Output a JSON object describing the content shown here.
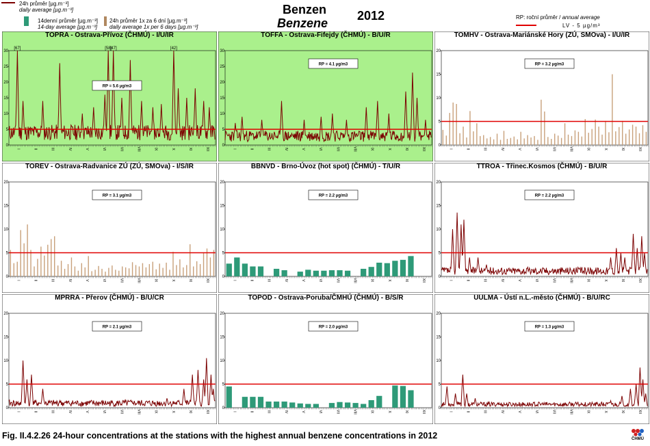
{
  "header": {
    "title": "Benzen",
    "subtitle": "Benzene",
    "year": "2012",
    "legend_24h": "24h průměr [µg.m⁻³]",
    "legend_24h_en": "daily average [µg.m⁻³]",
    "legend_14d": "14denní průměr [µg.m⁻³]",
    "legend_14d_en": "14-day average [µg.m⁻³]",
    "legend_6d": "24h průměr 1x za 6 dní [µg.m⁻³]",
    "legend_6d_en": "daily average 1x per 6 days [µg.m⁻³]",
    "legend_rp": "RP: roční průměr / ",
    "legend_rp_en": "annual average",
    "legend_lv": "LV - 5 µg/m³",
    "colors": {
      "daily": "#7b0000",
      "fortnight": "#2e9a78",
      "sixday": "#c8a07a",
      "limit": "#e00000",
      "green_bg": "#aaf08c"
    }
  },
  "caption": "Fig. II.4.2.26  24-hour concentrations at the stations with the highest annual benzene concentrations in 2012",
  "logo_text": "ČHMÚ",
  "months": [
    "I",
    "II",
    "III",
    "IV",
    "V",
    "VI",
    "VII",
    "VIII",
    "IX",
    "X",
    "XI",
    "XII"
  ],
  "chart_data": [
    {
      "type": "line",
      "title": "TOPRA - Ostrava-Přívoz (ČHMÚ) - I/U/IR",
      "rp_label": "RP = 5.6 µg/m3",
      "ylim": [
        0,
        30
      ],
      "yticks": [
        0,
        5,
        10,
        15,
        20,
        25,
        30
      ],
      "highlight": true,
      "limit": 5,
      "annotations": [
        {
          "day": 15,
          "text": "[67]"
        },
        {
          "day": 176,
          "text": "[58]"
        },
        {
          "day": 185,
          "text": "[47]"
        },
        {
          "day": 292,
          "text": "[42]"
        }
      ],
      "peaks": [
        [
          15,
          30
        ],
        [
          25,
          14
        ],
        [
          60,
          14
        ],
        [
          90,
          26
        ],
        [
          130,
          10
        ],
        [
          150,
          12
        ],
        [
          170,
          16
        ],
        [
          176,
          30
        ],
        [
          185,
          30
        ],
        [
          200,
          15
        ],
        [
          215,
          27
        ],
        [
          235,
          14
        ],
        [
          255,
          12
        ],
        [
          270,
          13
        ],
        [
          292,
          30
        ],
        [
          300,
          18
        ],
        [
          315,
          15
        ],
        [
          330,
          18
        ],
        [
          345,
          14
        ],
        [
          355,
          12
        ]
      ],
      "base": 3.5,
      "noise": 2.5,
      "seed": 11
    },
    {
      "type": "line",
      "title": "TOFFA - Ostrava-Fifejdy (ČHMÚ) - B/U/R",
      "rp_label": "RP = 4.1 µg/m3",
      "ylim": [
        0,
        30
      ],
      "yticks": [
        0,
        5,
        10,
        15,
        20,
        25,
        30
      ],
      "highlight": true,
      "limit": 5,
      "annotations": [],
      "peaks": [
        [
          18,
          7
        ],
        [
          30,
          9
        ],
        [
          65,
          8
        ],
        [
          100,
          14
        ],
        [
          140,
          8
        ],
        [
          170,
          9
        ],
        [
          190,
          10
        ],
        [
          215,
          8
        ],
        [
          250,
          12
        ],
        [
          270,
          14
        ],
        [
          290,
          10
        ],
        [
          320,
          17
        ],
        [
          332,
          23
        ],
        [
          340,
          15
        ],
        [
          355,
          8
        ]
      ],
      "base": 2.5,
      "noise": 1.8,
      "seed": 23
    },
    {
      "type": "bar6",
      "title": "TOMHV - Ostrava-Mariánské Hory (ZÚ, SMOva) - I/U/IR",
      "rp_label": "RP = 3.2 µg/m3",
      "ylim": [
        0,
        20
      ],
      "yticks": [
        0,
        5,
        10,
        15,
        20
      ],
      "highlight": false,
      "limit": 5,
      "values": [
        3.2,
        2.0,
        6.8,
        9.0,
        8.7,
        2.5,
        3.9,
        1.6,
        7.2,
        2.9,
        4.6,
        1.9,
        2.1,
        1.4,
        1.7,
        1.2,
        2.4,
        1.1,
        3.0,
        1.3,
        1.5,
        1.8,
        1.2,
        2.8,
        1.4,
        2.1,
        1.6,
        1.9,
        1.1,
        9.6,
        7.1,
        1.7,
        1.3,
        2.4,
        2.0,
        1.5,
        4.6,
        2.2,
        1.9,
        3.1,
        2.8,
        1.8,
        5.5,
        2.6,
        3.4,
        5.4,
        3.9,
        2.2,
        5.1,
        2.7,
        15.0,
        2.9,
        3.8,
        5.1,
        2.4,
        3.3,
        4.3,
        3.9,
        2.5,
        4.2,
        2.8
      ]
    },
    {
      "type": "bar6",
      "title": "TOREV - Ostrava-Radvanice ZÚ (ZÚ, SMOva) - I/S/IR",
      "rp_label": "RP = 3.1 µg/m3",
      "ylim": [
        0,
        20
      ],
      "yticks": [
        0,
        5,
        10,
        15,
        20
      ],
      "highlight": false,
      "limit": 5,
      "values": [
        5.6,
        2.8,
        3.1,
        9.8,
        7.0,
        11.0,
        5.6,
        2.1,
        3.7,
        6.3,
        4.4,
        6.7,
        7.9,
        8.5,
        2.3,
        3.3,
        1.6,
        2.6,
        4.0,
        2.1,
        1.2,
        2.8,
        1.9,
        4.3,
        1.1,
        1.4,
        2.2,
        1.6,
        1.0,
        1.8,
        2.3,
        1.4,
        1.2,
        2.1,
        1.9,
        1.7,
        3.0,
        2.4,
        2.1,
        2.8,
        1.9,
        2.6,
        3.1,
        1.5,
        2.7,
        1.8,
        2.9,
        1.4,
        5.2,
        2.4,
        3.6,
        1.9,
        2.4,
        6.8,
        2.1,
        3.2,
        2.6,
        5.1,
        5.9,
        4.0,
        5.6
      ]
    },
    {
      "type": "bar14",
      "title": "BBNVD - Brno-Úvoz (hot spot) (ČHMÚ) - T/U/R",
      "rp_label": "RP = 2.2 µg/m3",
      "ylim": [
        0,
        20
      ],
      "yticks": [
        0,
        5,
        10,
        15,
        20
      ],
      "highlight": false,
      "limit": 5,
      "values": [
        2.7,
        4.0,
        2.7,
        2.1,
        2.1,
        null,
        1.6,
        1.3,
        null,
        1.0,
        1.4,
        1.2,
        1.2,
        1.3,
        1.3,
        1.2,
        null,
        1.6,
        2.0,
        2.9,
        2.8,
        3.3,
        3.5,
        4.3,
        null,
        null
      ]
    },
    {
      "type": "line",
      "title": "TTROA - Třinec.Kosmos (ČHMÚ) - B/U/R",
      "rp_label": "RP = 2.2 µg/m3",
      "ylim": [
        0,
        20
      ],
      "yticks": [
        0,
        5,
        10,
        15,
        20
      ],
      "highlight": false,
      "limit": 5,
      "annotations": [],
      "peaks": [
        [
          20,
          10
        ],
        [
          28,
          13.5
        ],
        [
          35,
          11
        ],
        [
          40,
          12
        ],
        [
          50,
          4
        ],
        [
          65,
          4
        ],
        [
          80,
          2.5
        ],
        [
          120,
          1.5
        ],
        [
          200,
          1
        ],
        [
          260,
          1.5
        ],
        [
          300,
          4
        ],
        [
          310,
          6
        ],
        [
          318,
          5
        ],
        [
          325,
          4
        ],
        [
          340,
          9
        ],
        [
          347,
          6
        ],
        [
          355,
          8.5
        ],
        [
          360,
          5
        ]
      ],
      "base": 1.0,
      "noise": 0.8,
      "seed": 37
    },
    {
      "type": "line",
      "title": "MPRRA - Přerov (ČHMÚ) - B/U/CR",
      "rp_label": "RP = 2.1 µg/m3",
      "ylim": [
        0,
        20
      ],
      "yticks": [
        0,
        5,
        10,
        15,
        20
      ],
      "highlight": false,
      "limit": 5,
      "annotations": [],
      "peaks": [
        [
          25,
          10
        ],
        [
          32,
          6
        ],
        [
          40,
          7
        ],
        [
          60,
          4
        ],
        [
          90,
          1.5
        ],
        [
          150,
          1
        ],
        [
          220,
          1
        ],
        [
          280,
          2
        ],
        [
          310,
          4
        ],
        [
          325,
          7
        ],
        [
          335,
          8
        ],
        [
          345,
          6
        ],
        [
          350,
          10.5
        ],
        [
          358,
          7
        ],
        [
          362,
          4
        ]
      ],
      "base": 0.8,
      "noise": 0.7,
      "seed": 41
    },
    {
      "type": "bar14",
      "title": "TOPOD - Ostrava-Poruba/ČMHÚ (ČHMÚ) - B/S/R",
      "rp_label": "RP = 2.0 µg/m3",
      "ylim": [
        0,
        20
      ],
      "yticks": [
        0,
        5,
        10,
        15,
        20
      ],
      "highlight": false,
      "limit": 5,
      "values": [
        4.5,
        null,
        2.3,
        2.3,
        2.3,
        1.3,
        1.3,
        1.3,
        1.1,
        0.9,
        0.8,
        0.8,
        null,
        1.0,
        1.2,
        1.1,
        1.0,
        0.8,
        1.6,
        2.5,
        null,
        4.7,
        4.6,
        3.7,
        null,
        null
      ]
    },
    {
      "type": "line",
      "title": "UULMA - Ústí n.L.-město (ČHMÚ) - B/U/RC",
      "rp_label": "RP = 1.3 µg/m3",
      "ylim": [
        0,
        20
      ],
      "yticks": [
        0,
        5,
        10,
        15,
        20
      ],
      "highlight": false,
      "limit": 5,
      "annotations": [],
      "peaks": [
        [
          10,
          4.5
        ],
        [
          25,
          3
        ],
        [
          38,
          7
        ],
        [
          45,
          3
        ],
        [
          60,
          2
        ],
        [
          100,
          1
        ],
        [
          180,
          0.6
        ],
        [
          250,
          0.8
        ],
        [
          300,
          1.5
        ],
        [
          320,
          2.5
        ],
        [
          335,
          4
        ],
        [
          345,
          5
        ],
        [
          352,
          8.5
        ],
        [
          357,
          6
        ],
        [
          362,
          3
        ]
      ],
      "base": 0.6,
      "noise": 0.5,
      "seed": 53
    }
  ]
}
